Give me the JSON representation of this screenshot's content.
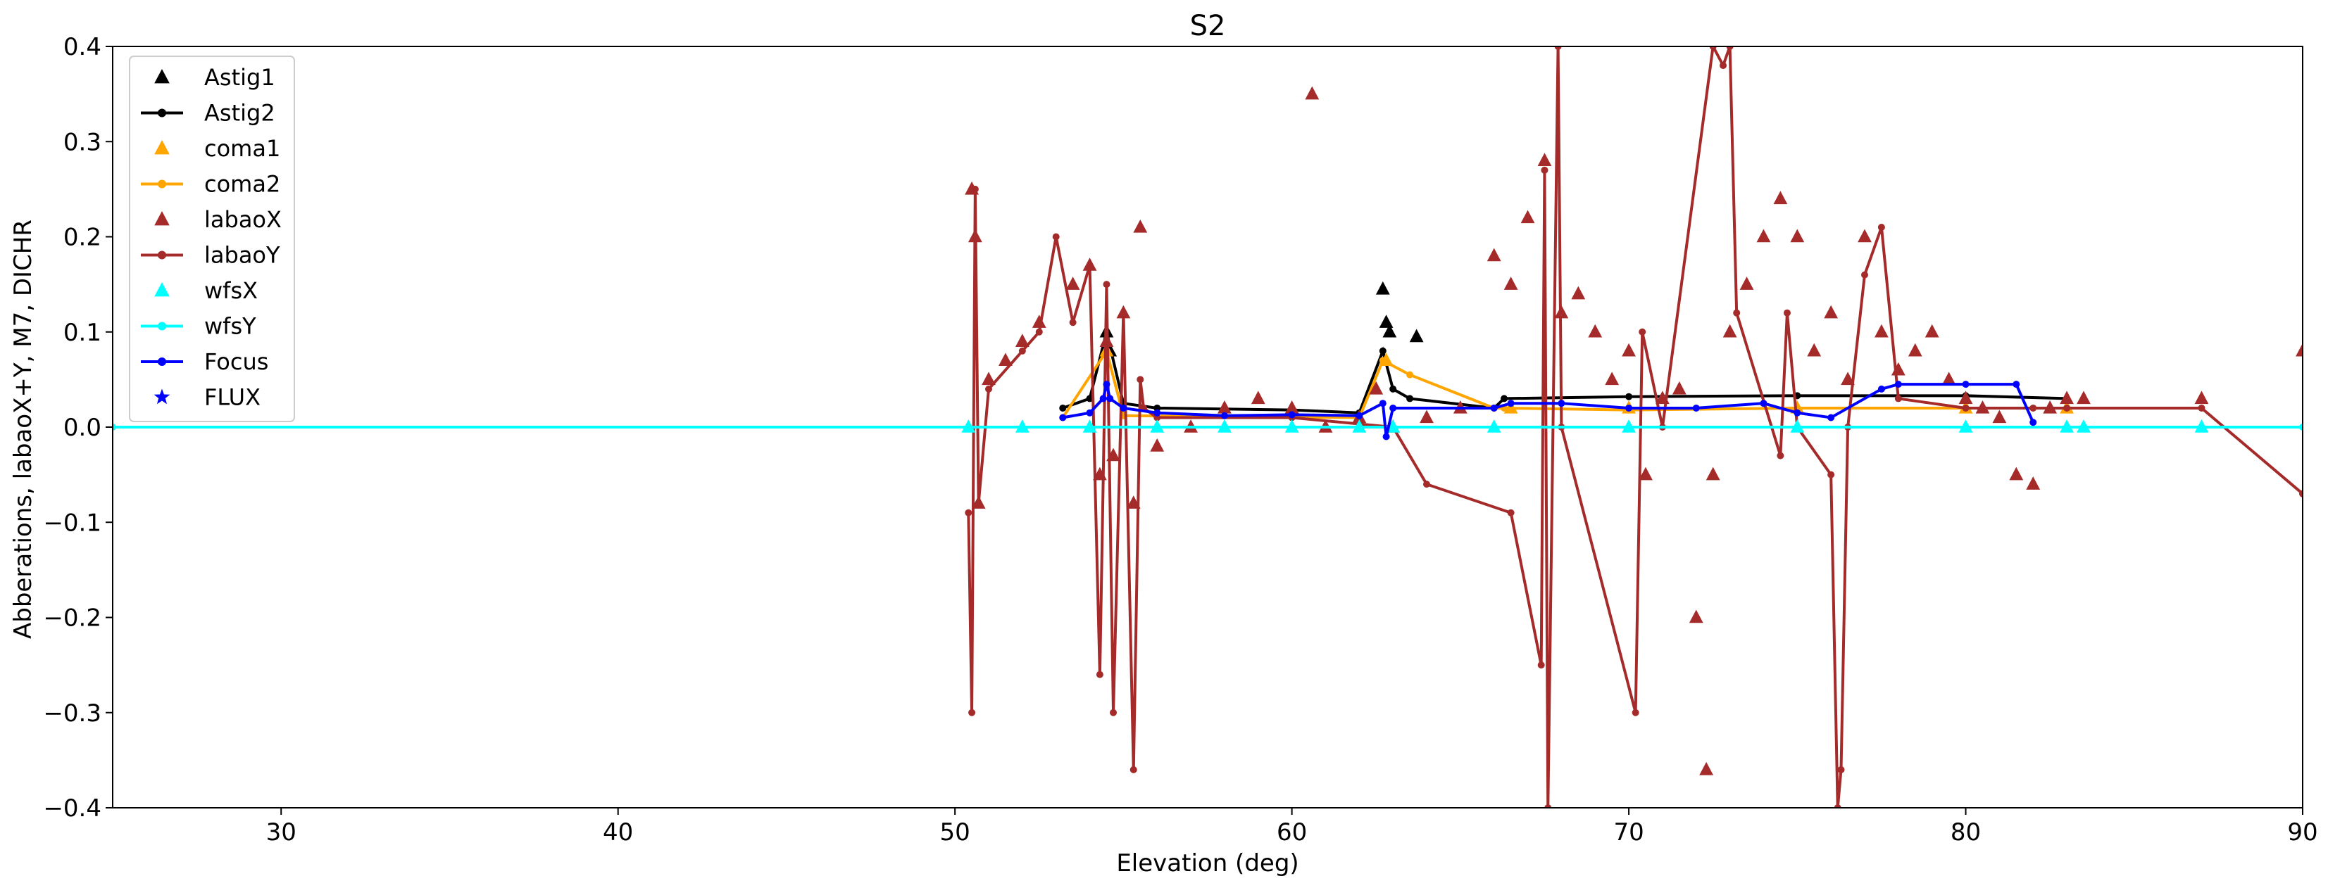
{
  "chart_data": {
    "type": "scatter",
    "title": "S2",
    "xlabel": "Elevation (deg)",
    "ylabel": "Abberations, labaoX+Y, M7, DICHR",
    "xlim": [
      25,
      90
    ],
    "ylim": [
      -0.4,
      0.4
    ],
    "xticks": [
      30,
      40,
      50,
      60,
      70,
      80,
      90
    ],
    "yticks": [
      -0.4,
      -0.3,
      -0.2,
      -0.1,
      0.0,
      0.1,
      0.2,
      0.3,
      0.4
    ],
    "ytick_labels": [
      "−0.4",
      "−0.3",
      "−0.2",
      "−0.1",
      "0.0",
      "0.1",
      "0.2",
      "0.3",
      "0.4"
    ],
    "grid": false,
    "legend_position": "upper-left",
    "colors": {
      "Astig": "#000000",
      "coma": "#ffa500",
      "labao": "#a52a2a",
      "wfs": "#00ffff",
      "Focus": "#0000ff",
      "FLUX": "#0000ff"
    },
    "series": [
      {
        "name": "Astig1",
        "marker": "triangle",
        "color": "#000000",
        "x": [
          54.5,
          54.6,
          62.7,
          62.8,
          62.9,
          63.7
        ],
        "y": [
          0.1,
          0.08,
          0.145,
          0.11,
          0.1,
          0.095
        ]
      },
      {
        "name": "Astig2",
        "marker": "dot-line",
        "color": "#000000",
        "x": [
          53.2,
          54.0,
          54.5,
          55.0,
          56.0,
          60.0,
          62.0,
          62.7,
          63.0,
          63.5,
          66.0,
          66.3,
          70.0,
          75.0,
          80.0,
          83.0
        ],
        "y": [
          0.02,
          0.03,
          0.1,
          0.025,
          0.02,
          0.018,
          0.015,
          0.08,
          0.04,
          0.03,
          0.02,
          0.03,
          0.032,
          0.033,
          0.033,
          0.03
        ]
      },
      {
        "name": "coma1",
        "marker": "triangle",
        "color": "#ffa500",
        "x": [
          54.5,
          62.8,
          66.5,
          70.0,
          75.0,
          80.0,
          83.0
        ],
        "y": [
          0.08,
          0.07,
          0.02,
          0.02,
          0.02,
          0.02,
          0.02
        ]
      },
      {
        "name": "coma2",
        "marker": "dot-line",
        "color": "#ffa500",
        "x": [
          53.2,
          54.5,
          55.0,
          62.0,
          62.7,
          63.5,
          66.0,
          66.3,
          70.0,
          75.0,
          80.0,
          83.0
        ],
        "y": [
          0.01,
          0.08,
          0.012,
          0.01,
          0.07,
          0.055,
          0.02,
          0.02,
          0.018,
          0.02,
          0.02,
          0.02
        ]
      },
      {
        "name": "labaoX",
        "marker": "triangle",
        "color": "#a52a2a",
        "x": [
          50.5,
          50.6,
          50.7,
          51.0,
          51.5,
          52.0,
          52.5,
          53.5,
          54.0,
          54.3,
          54.5,
          54.7,
          55.0,
          55.3,
          55.5,
          56.0,
          57.0,
          58.0,
          59.0,
          60.0,
          60.6,
          61.0,
          62.0,
          62.5,
          63.0,
          64.0,
          65.0,
          66.0,
          66.5,
          67.0,
          67.5,
          68.0,
          68.5,
          69.0,
          69.5,
          70.0,
          70.5,
          71.0,
          71.5,
          72.0,
          72.3,
          72.5,
          73.0,
          73.5,
          74.0,
          74.5,
          75.0,
          75.5,
          76.0,
          76.5,
          77.0,
          77.5,
          78.0,
          78.5,
          79.0,
          79.5,
          80.0,
          80.5,
          81.0,
          81.5,
          82.0,
          82.5,
          83.0,
          83.5,
          87.0,
          90.0
        ],
        "y": [
          0.25,
          0.2,
          -0.08,
          0.05,
          0.07,
          0.09,
          0.11,
          0.15,
          0.17,
          -0.05,
          0.09,
          -0.03,
          0.12,
          -0.08,
          0.21,
          -0.02,
          0.0,
          0.02,
          0.03,
          0.02,
          0.35,
          0.0,
          0.01,
          0.04,
          0.0,
          0.01,
          0.02,
          0.18,
          0.15,
          0.22,
          0.28,
          0.12,
          0.14,
          0.1,
          0.05,
          0.08,
          -0.05,
          0.03,
          0.04,
          -0.2,
          -0.36,
          -0.05,
          0.1,
          0.15,
          0.2,
          0.24,
          0.2,
          0.08,
          0.12,
          0.05,
          0.2,
          0.1,
          0.06,
          0.08,
          0.1,
          0.05,
          0.03,
          0.02,
          0.01,
          -0.05,
          -0.06,
          0.02,
          0.03,
          0.03,
          0.03,
          0.08
        ]
      },
      {
        "name": "labaoY",
        "marker": "dot-line",
        "color": "#a52a2a",
        "x": [
          50.4,
          50.5,
          50.6,
          50.7,
          51.0,
          52.0,
          52.5,
          53.0,
          53.5,
          54.0,
          54.3,
          54.5,
          54.7,
          55.0,
          55.3,
          55.5,
          55.6,
          56.0,
          60.0,
          63.0,
          64.0,
          66.5,
          67.4,
          67.5,
          67.6,
          67.9,
          68.0,
          70.2,
          70.4,
          71.0,
          72.5,
          72.8,
          73.0,
          73.2,
          74.5,
          74.7,
          75.0,
          76.0,
          76.2,
          76.3,
          76.5,
          77.0,
          77.5,
          78.0,
          80.0,
          82.0,
          83.0,
          87.0,
          90.0
        ],
        "y": [
          -0.09,
          -0.3,
          0.25,
          -0.08,
          0.04,
          0.08,
          0.1,
          0.2,
          0.11,
          0.17,
          -0.26,
          0.15,
          -0.3,
          0.12,
          -0.36,
          0.05,
          0.02,
          0.01,
          0.01,
          0.0,
          -0.06,
          -0.09,
          -0.25,
          0.27,
          -0.4,
          0.4,
          0.0,
          -0.3,
          0.1,
          0.0,
          0.4,
          0.38,
          0.4,
          0.12,
          -0.03,
          0.12,
          0.0,
          -0.05,
          -0.4,
          -0.36,
          0.0,
          0.16,
          0.21,
          0.03,
          0.02,
          0.02,
          0.02,
          0.02,
          -0.07
        ]
      },
      {
        "name": "wfsX",
        "marker": "triangle",
        "color": "#00ffff",
        "x": [
          50.4,
          52.0,
          54.0,
          56.0,
          58.0,
          60.0,
          62.0,
          63.0,
          66.0,
          70.0,
          75.0,
          80.0,
          83.0,
          83.5,
          87.0
        ],
        "y": [
          0.0,
          0.0,
          0.0,
          0.0,
          0.0,
          0.0,
          0.0,
          0.0,
          0.0,
          0.0,
          0.0,
          0.0,
          0.0,
          0.0,
          0.0
        ]
      },
      {
        "name": "wfsY",
        "marker": "dot-line",
        "color": "#00ffff",
        "x": [
          25.0,
          50.4,
          60.0,
          70.0,
          80.0,
          83.0,
          90.0
        ],
        "y": [
          0.0,
          0.0,
          0.0,
          0.0,
          0.0,
          0.0,
          0.0
        ]
      },
      {
        "name": "Focus",
        "marker": "dot-line",
        "color": "#0000ff",
        "x": [
          53.2,
          54.0,
          54.4,
          54.5,
          54.6,
          55.0,
          56.0,
          58.0,
          60.0,
          62.0,
          62.7,
          62.8,
          63.0,
          66.0,
          66.5,
          68.0,
          70.0,
          72.0,
          74.0,
          75.0,
          76.0,
          77.5,
          78.0,
          80.0,
          81.5,
          82.0
        ],
        "y": [
          0.01,
          0.015,
          0.03,
          0.045,
          0.03,
          0.02,
          0.015,
          0.012,
          0.013,
          0.012,
          0.025,
          -0.01,
          0.02,
          0.02,
          0.025,
          0.025,
          0.02,
          0.02,
          0.025,
          0.015,
          0.01,
          0.04,
          0.045,
          0.045,
          0.045,
          0.005
        ]
      },
      {
        "name": "FLUX",
        "marker": "star",
        "color": "#0000ff",
        "x": [],
        "y": []
      }
    ]
  }
}
